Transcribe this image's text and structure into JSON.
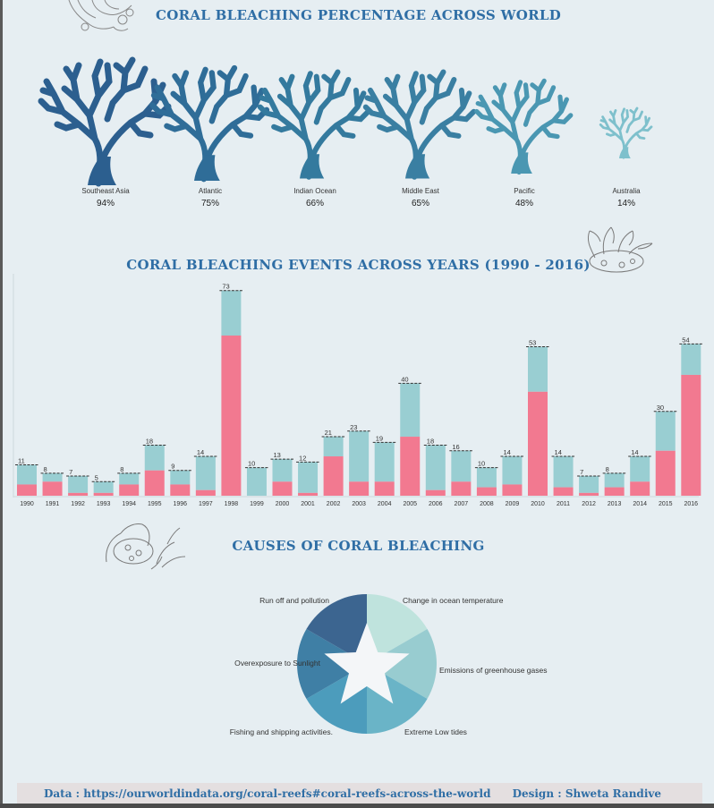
{
  "titles": {
    "coral": "CORAL BLEACHING PERCENTAGE ACROSS WORLD",
    "events": "CORAL BLEACHING EVENTS ACROSS YEARS (1990 - 2016)",
    "causes": "CAUSES OF CORAL BLEACHING"
  },
  "colors": {
    "severe": "#f27990",
    "moderate": "#99ced2",
    "title": "#2f6ea5"
  },
  "chart_data": [
    {
      "type": "pictograph",
      "regions": [
        {
          "name": "Southeast Asia",
          "percent": 94,
          "color": "#2c5f8f"
        },
        {
          "name": "Atlantic",
          "percent": 75,
          "color": "#2f6d98"
        },
        {
          "name": "Indian Ocean",
          "percent": 66,
          "color": "#347a9e"
        },
        {
          "name": "Middle East",
          "percent": 65,
          "color": "#3a7fa2"
        },
        {
          "name": "Pacific",
          "percent": 48,
          "color": "#4a97b2"
        },
        {
          "name": "Australia",
          "percent": 14,
          "color": "#7ec0cc"
        }
      ]
    },
    {
      "type": "bar",
      "stacked": true,
      "categories": [
        "1990",
        "1991",
        "1992",
        "1993",
        "1994",
        "1995",
        "1996",
        "1997",
        "1998",
        "1999",
        "2000",
        "2001",
        "2002",
        "2003",
        "2004",
        "2005",
        "2006",
        "2007",
        "2008",
        "2009",
        "2010",
        "2011",
        "2012",
        "2013",
        "2014",
        "2015",
        "2016"
      ],
      "totals": [
        11,
        8,
        7,
        5,
        8,
        18,
        9,
        14,
        73,
        10,
        13,
        12,
        21,
        23,
        19,
        40,
        18,
        16,
        10,
        14,
        53,
        14,
        7,
        8,
        14,
        30,
        54
      ],
      "series": [
        {
          "values": [
            4,
            5,
            1,
            1,
            4,
            9,
            4,
            2,
            57,
            0,
            5,
            1,
            14,
            5,
            5,
            21,
            2,
            5,
            3,
            4,
            37,
            3,
            1,
            3,
            5,
            16,
            43
          ]
        },
        {
          "values": [
            7,
            3,
            6,
            4,
            4,
            9,
            5,
            12,
            16,
            10,
            8,
            11,
            7,
            18,
            14,
            19,
            16,
            11,
            7,
            10,
            16,
            11,
            6,
            5,
            9,
            14,
            11
          ]
        }
      ],
      "ylim": [
        0,
        76
      ],
      "grid": false
    },
    {
      "type": "pie",
      "center": "star",
      "slices": [
        {
          "label": "Change in ocean temperature",
          "value": 1,
          "color": "#bfe3dd"
        },
        {
          "label": "Emissions of greenhouse gases",
          "value": 1,
          "color": "#98ccd0"
        },
        {
          "label": "Extreme Low tides",
          "value": 1,
          "color": "#6ab4c7"
        },
        {
          "label": "Fishing and shipping activities.",
          "value": 1,
          "color": "#4c9cbc"
        },
        {
          "label": "Overexposure to Sunlight",
          "value": 1,
          "color": "#3f7fa5"
        },
        {
          "label": "Run off and pollution",
          "value": 1,
          "color": "#3c6590"
        }
      ]
    }
  ],
  "footer": {
    "data": "Data : https://ourworldindata.org/coral-reefs#coral-reefs-across-the-world",
    "design": "Design : Shweta Randive"
  }
}
